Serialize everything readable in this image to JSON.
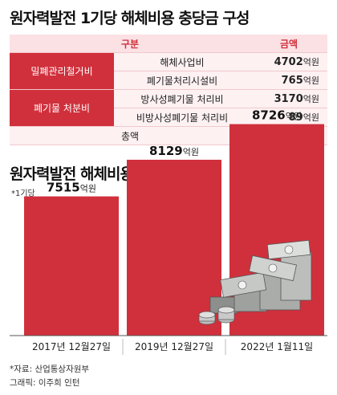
{
  "title_table": "원자력발전 1기당 해체비용 충당금 구성",
  "table": {
    "headers": [
      "구분",
      "금액"
    ],
    "groups": [
      {
        "category": "밀폐관리철거비",
        "rows": [
          {
            "item": "해체사업비",
            "amount": "4702",
            "unit": "억원"
          },
          {
            "item": "폐기물처리시설비",
            "amount": "765",
            "unit": "억원"
          }
        ]
      },
      {
        "category": "폐기물 처분비",
        "rows": [
          {
            "item": "방사성폐기물 처리비",
            "amount": "3170",
            "unit": "억원"
          },
          {
            "item": "비방사성폐기물 처리비",
            "amount": "89",
            "unit": "억원"
          }
        ]
      }
    ],
    "total": {
      "label": "총액",
      "amount": "8726",
      "unit": "억원"
    }
  },
  "title_chart": "원자력발전 해체비용 충당금 추이",
  "chart_note": "*1기당",
  "chart_data": {
    "type": "bar",
    "title": "원자력발전 해체비용 충당금 추이",
    "categories": [
      "2017년 12월27일",
      "2019년 12월27일",
      "2022년 1월11일"
    ],
    "values": [
      7515,
      8129,
      8726
    ],
    "value_labels": [
      "7515",
      "8129",
      "8726"
    ],
    "unit": "억원",
    "ylim": [
      0,
      9000
    ],
    "grid": false,
    "colors": {
      "bar": "#d0303c",
      "axis": "#555555"
    }
  },
  "source": "*자료: 산업통상자원부",
  "credit": "그래픽: 이주희 인턴",
  "colors": {
    "accent": "#d0303c",
    "light": "#fdf1f2",
    "header": "#fbe1e4"
  }
}
